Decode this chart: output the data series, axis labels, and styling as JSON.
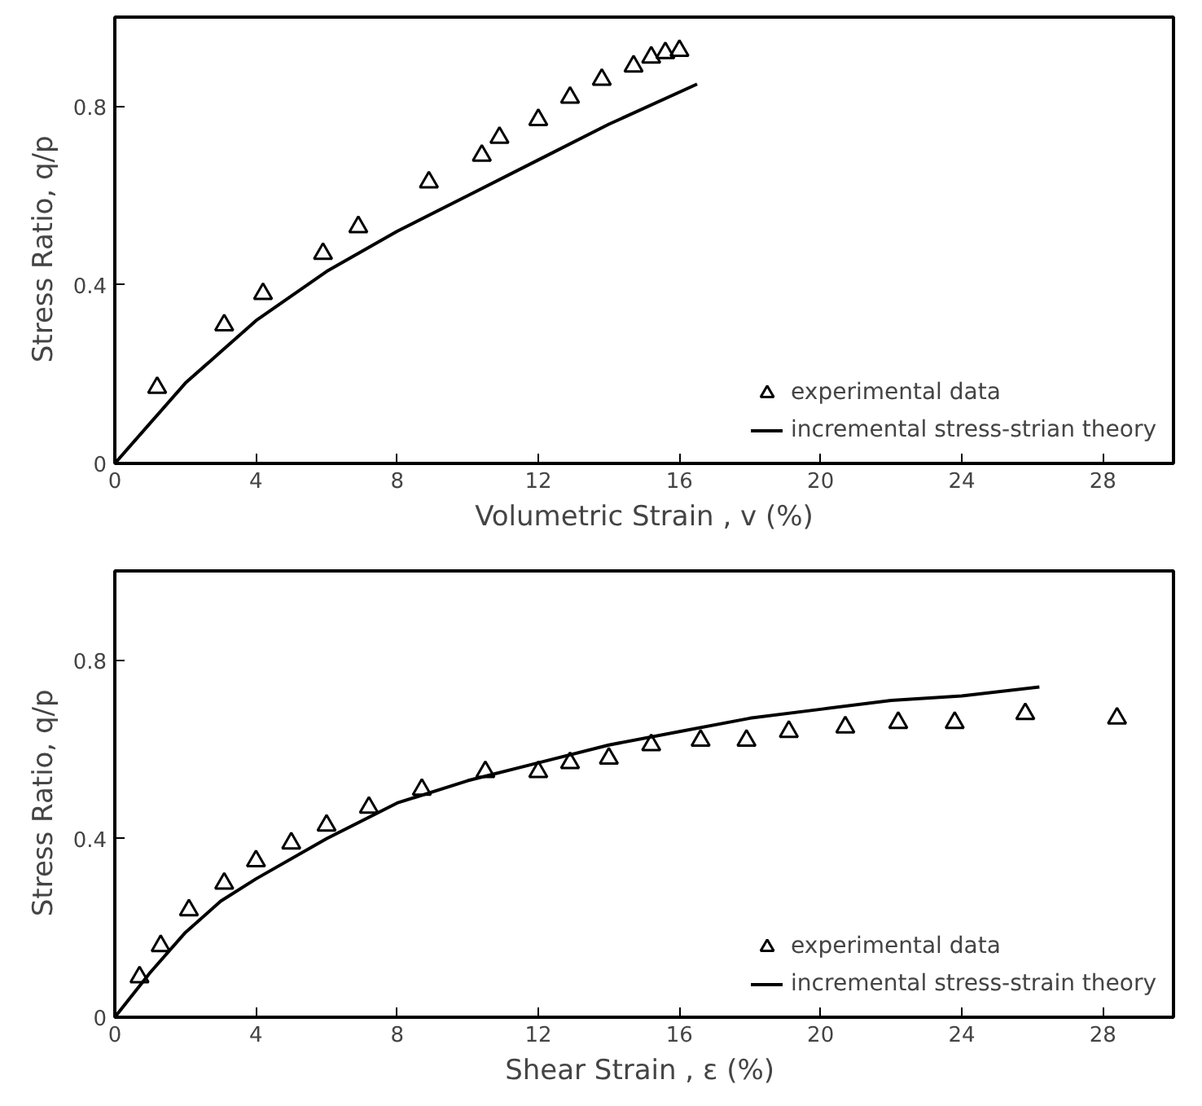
{
  "chart_data": [
    {
      "type": "scatter",
      "xlabel": "Volumetric Strain , v (%)",
      "ylabel": "Stress  Ratio,  q/p",
      "xlim": [
        0,
        30
      ],
      "ylim": [
        0,
        1
      ],
      "xticks": [
        0,
        4,
        8,
        12,
        16,
        20,
        24,
        28
      ],
      "yticks": [
        0,
        0.4,
        0.8
      ],
      "legend": "bottom right",
      "grid": false,
      "series": [
        {
          "name": "experimental data",
          "marker": "triangle",
          "color": "#000000",
          "x": [
            1.2,
            3.1,
            4.2,
            5.9,
            6.9,
            8.9,
            10.4,
            10.9,
            12.0,
            12.9,
            13.8,
            14.7,
            15.2,
            15.6,
            16.0
          ],
          "values": [
            0.17,
            0.31,
            0.38,
            0.47,
            0.53,
            0.63,
            0.69,
            0.73,
            0.77,
            0.82,
            0.86,
            0.89,
            0.91,
            0.92,
            0.925
          ]
        },
        {
          "name": "incremental stress-strian theory",
          "type": "line",
          "line_style": "solid",
          "color": "#000000",
          "x": [
            0,
            1,
            2,
            3,
            4,
            6,
            8,
            10,
            12,
            14,
            16.5
          ],
          "values": [
            0,
            0.09,
            0.18,
            0.25,
            0.32,
            0.43,
            0.52,
            0.6,
            0.68,
            0.76,
            0.85
          ]
        }
      ]
    },
    {
      "type": "scatter",
      "xlabel": "Shear  Strain , ε (%)",
      "ylabel": "Stress  Ratio,  q/p",
      "xlim": [
        0,
        30
      ],
      "ylim": [
        0,
        1
      ],
      "xticks": [
        0,
        4,
        8,
        12,
        16,
        20,
        24,
        28
      ],
      "yticks": [
        0,
        0.4,
        0.8
      ],
      "legend": "bottom right",
      "grid": false,
      "series": [
        {
          "name": "experimental data",
          "marker": "triangle",
          "color": "#000000",
          "x": [
            0.7,
            1.3,
            2.1,
            3.1,
            4.0,
            5.0,
            6.0,
            7.2,
            8.7,
            10.5,
            12.0,
            12.9,
            14.0,
            15.2,
            16.6,
            17.9,
            19.1,
            20.7,
            22.2,
            23.8,
            25.8,
            28.4
          ],
          "values": [
            0.09,
            0.16,
            0.24,
            0.3,
            0.35,
            0.39,
            0.43,
            0.47,
            0.51,
            0.55,
            0.55,
            0.57,
            0.58,
            0.61,
            0.62,
            0.62,
            0.64,
            0.65,
            0.66,
            0.66,
            0.68,
            0.67
          ]
        },
        {
          "name": "incremental stress-strain theory",
          "type": "line",
          "line_style": "solid",
          "color": "#000000",
          "x": [
            0,
            1,
            2,
            3,
            4,
            6,
            8,
            10,
            12,
            14,
            16,
            18,
            20,
            22,
            24,
            26.2
          ],
          "values": [
            0,
            0.1,
            0.19,
            0.26,
            0.31,
            0.4,
            0.48,
            0.53,
            0.57,
            0.61,
            0.64,
            0.67,
            0.69,
            0.71,
            0.72,
            0.74
          ]
        }
      ]
    }
  ]
}
